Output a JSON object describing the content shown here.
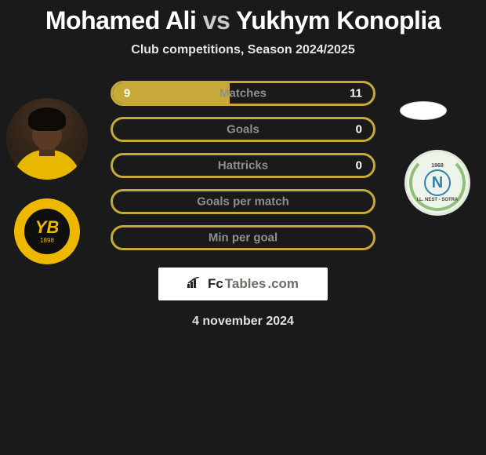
{
  "title": {
    "player1": "Mohamed Ali",
    "vs": "vs",
    "player2": "Yukhym Konoplia"
  },
  "subtitle": "Club competitions, Season 2024/2025",
  "left": {
    "club_badge": {
      "text": "YB",
      "year": "1898",
      "ring_color": "#efb800",
      "inner_bg": "#0f0f0f"
    },
    "avatar_bg": "#2e2116",
    "shirt_color": "#e8b800"
  },
  "right": {
    "flag_bg": "#ffffff",
    "club_badge": {
      "letter": "N",
      "year": "1968",
      "name": "I.L. NEST - SOTRA",
      "wreath_color": "#8fbf7a",
      "accent": "#2d7fae",
      "bg": "#eef4e9"
    }
  },
  "bars": [
    {
      "label": "Matches",
      "left": "9",
      "right": "11",
      "fill_left_pct": 45
    },
    {
      "label": "Goals",
      "left": "",
      "right": "0",
      "fill_left_pct": 0
    },
    {
      "label": "Hattricks",
      "left": "",
      "right": "0",
      "fill_left_pct": 0
    },
    {
      "label": "Goals per match",
      "left": "",
      "right": "",
      "fill_left_pct": 0
    },
    {
      "label": "Min per goal",
      "left": "",
      "right": "",
      "fill_left_pct": 0
    }
  ],
  "bar_style": {
    "border_color": "#c7a93a",
    "fill_color": "#c7a93a",
    "label_color": "#8e918a",
    "bg": "#1a1a1a"
  },
  "brand": {
    "prefix": "Fc",
    "suffix": "Tables",
    "tld": ".com"
  },
  "date": "4 november 2024",
  "colors": {
    "page_bg": "#1a1a1a",
    "title_main": "#ffffff",
    "title_dim": "#c8cbc6"
  }
}
